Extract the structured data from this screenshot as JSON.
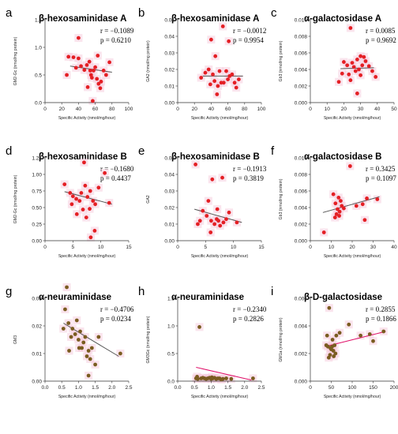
{
  "colors": {
    "red": "#e41f24",
    "brown": "#7a5c20",
    "reg_line": "#555555",
    "reg_line_pink": "#e0116a",
    "halo": "#f6c9dc"
  },
  "chart_data": [
    {
      "id": "a",
      "type": "scatter",
      "title": "β-hexosaminidase A",
      "ylabel": "GM2-Gc (nmol/mg protein)",
      "xlabel": "Specific Activity (nmol/mg/hour)",
      "r_label": "r = −0.1089",
      "p_label": "p = 0.6210",
      "xlim": [
        0,
        100
      ],
      "ylim": [
        0,
        1.5
      ],
      "xticks": [
        "0",
        "20",
        "40",
        "60",
        "80",
        "100"
      ],
      "yticks": [
        "0.0",
        "0.5",
        "1.0",
        "1.5"
      ],
      "point_color": "red",
      "line_color": "reg_line",
      "points": [
        [
          40,
          1.17
        ],
        [
          28,
          0.83
        ],
        [
          34,
          0.82
        ],
        [
          26,
          0.5
        ],
        [
          37,
          0.63
        ],
        [
          40,
          0.8
        ],
        [
          43,
          0.66
        ],
        [
          47,
          0.59
        ],
        [
          50,
          0.68
        ],
        [
          53,
          0.74
        ],
        [
          55,
          0.5
        ],
        [
          56,
          0.45
        ],
        [
          58,
          0.58
        ],
        [
          60,
          0.64
        ],
        [
          62,
          0.43
        ],
        [
          63,
          0.85
        ],
        [
          57,
          0.03
        ],
        [
          64,
          0.34
        ],
        [
          66,
          0.26
        ],
        [
          67,
          0.38
        ],
        [
          70,
          0.58
        ],
        [
          73,
          0.5
        ],
        [
          77,
          0.73
        ],
        [
          54,
          0.58
        ],
        [
          51,
          0.28
        ]
      ],
      "line": [
        [
          30,
          0.66
        ],
        [
          80,
          0.55
        ]
      ]
    },
    {
      "id": "b",
      "type": "scatter",
      "title": "β-hexosaminidase A",
      "ylabel": "GA2 (nmol/mg protein)",
      "xlabel": "Specific Activity (nmol/mg/hour)",
      "r_label": "r = −0.0012",
      "p_label": "p = 0.9954",
      "xlim": [
        0,
        100
      ],
      "ylim": [
        0,
        0.05
      ],
      "xticks": [
        "0",
        "20",
        "40",
        "60",
        "80",
        "100"
      ],
      "yticks": [
        "0.00",
        "0.01",
        "0.02",
        "0.03",
        "0.04",
        "0.05"
      ],
      "point_color": "red",
      "line_color": "reg_line",
      "points": [
        [
          54,
          0.046
        ],
        [
          61,
          0.037
        ],
        [
          40,
          0.038
        ],
        [
          45,
          0.028
        ],
        [
          28,
          0.015
        ],
        [
          33,
          0.018
        ],
        [
          37,
          0.02
        ],
        [
          42,
          0.017
        ],
        [
          44,
          0.013
        ],
        [
          48,
          0.01
        ],
        [
          50,
          0.019
        ],
        [
          52,
          0.012
        ],
        [
          55,
          0.012
        ],
        [
          58,
          0.019
        ],
        [
          60,
          0.014
        ],
        [
          62,
          0.016
        ],
        [
          65,
          0.017
        ],
        [
          68,
          0.012
        ],
        [
          70,
          0.009
        ],
        [
          73,
          0.014
        ],
        [
          47,
          0.005
        ],
        [
          39,
          0.011
        ]
      ],
      "line": [
        [
          30,
          0.016
        ],
        [
          78,
          0.016
        ]
      ]
    },
    {
      "id": "c",
      "type": "scatter",
      "title": "α-galactosidase A",
      "ylabel": "Gb3 (nmol/mg protein)",
      "xlabel": "Specific Activity (nmol/mg/hour)",
      "r_label": "r = 0.0085",
      "p_label": "p = 0.9692",
      "xlim": [
        0,
        50
      ],
      "ylim": [
        0,
        0.01
      ],
      "xticks": [
        "0",
        "10",
        "20",
        "30",
        "40",
        "50"
      ],
      "yticks": [
        "0.000",
        "0.002",
        "0.004",
        "0.006",
        "0.008",
        "0.010"
      ],
      "point_color": "red",
      "line_color": "reg_line",
      "points": [
        [
          24,
          0.009
        ],
        [
          30,
          0.0056
        ],
        [
          28,
          0.0052
        ],
        [
          20,
          0.0049
        ],
        [
          22,
          0.0045
        ],
        [
          26,
          0.0043
        ],
        [
          17,
          0.0025
        ],
        [
          19,
          0.0035
        ],
        [
          23,
          0.0034
        ],
        [
          25,
          0.0048
        ],
        [
          27,
          0.0038
        ],
        [
          29,
          0.004
        ],
        [
          31,
          0.0045
        ],
        [
          33,
          0.005
        ],
        [
          35,
          0.0044
        ],
        [
          37,
          0.0038
        ],
        [
          39,
          0.0031
        ],
        [
          24,
          0.0027
        ],
        [
          30,
          0.0033
        ],
        [
          28,
          0.0011
        ],
        [
          32,
          0.0055
        ]
      ],
      "line": [
        [
          18,
          0.0041
        ],
        [
          38,
          0.0042
        ]
      ]
    },
    {
      "id": "d",
      "type": "scatter",
      "title": "β-hexosaminidase B",
      "ylabel": "GM2-Gc (nmol/mg protein)",
      "xlabel": "Specific Activity (nmol/mg/hour)",
      "r_label": "r = −0.1680",
      "p_label": "p = 0.4437",
      "xlim": [
        0,
        15
      ],
      "ylim": [
        0,
        1.25
      ],
      "xticks": [
        "0",
        "5",
        "10",
        "15"
      ],
      "yticks": [
        "0.00",
        "0.25",
        "0.50",
        "0.75",
        "1.00",
        "1.25"
      ],
      "point_color": "red",
      "line_color": "reg_line",
      "points": [
        [
          7,
          1.18
        ],
        [
          10.7,
          1.02
        ],
        [
          3.5,
          0.85
        ],
        [
          4.5,
          0.72
        ],
        [
          5,
          0.67
        ],
        [
          5.6,
          0.63
        ],
        [
          6.2,
          0.6
        ],
        [
          6.5,
          0.72
        ],
        [
          7.2,
          0.83
        ],
        [
          7.6,
          0.66
        ],
        [
          8.1,
          0.75
        ],
        [
          8.6,
          0.6
        ],
        [
          9,
          0.55
        ],
        [
          6.8,
          0.47
        ],
        [
          7.4,
          0.35
        ],
        [
          8,
          0.48
        ],
        [
          5.7,
          0.4
        ],
        [
          4.8,
          0.55
        ],
        [
          9.6,
          0.8
        ],
        [
          11.5,
          0.57
        ],
        [
          8.9,
          0.15
        ],
        [
          8.2,
          0.05
        ]
      ],
      "line": [
        [
          3.5,
          0.74
        ],
        [
          12,
          0.55
        ]
      ]
    },
    {
      "id": "e",
      "type": "scatter",
      "title": "β-hexosaminidase B",
      "ylabel": "GA2",
      "xlabel": "Specific Activity (nmol/mg/hour)",
      "r_label": "r = −0.1913",
      "p_label": "p = 0.3819",
      "xlim": [
        0,
        15
      ],
      "ylim": [
        0,
        0.05
      ],
      "xticks": [
        "0",
        "5",
        "10",
        "15"
      ],
      "yticks": [
        "0.00",
        "0.01",
        "0.02",
        "0.03",
        "0.04",
        "0.05"
      ],
      "point_color": "red",
      "line_color": "reg_line",
      "points": [
        [
          3.2,
          0.046
        ],
        [
          6.2,
          0.037
        ],
        [
          8,
          0.038
        ],
        [
          5.5,
          0.024
        ],
        [
          4.5,
          0.018
        ],
        [
          5.2,
          0.015
        ],
        [
          6,
          0.012
        ],
        [
          6.6,
          0.01
        ],
        [
          7,
          0.013
        ],
        [
          7.3,
          0.012
        ],
        [
          7.6,
          0.009
        ],
        [
          8.2,
          0.011
        ],
        [
          8.7,
          0.013
        ],
        [
          9.2,
          0.017
        ],
        [
          4,
          0.012
        ],
        [
          3.6,
          0.01
        ],
        [
          10.6,
          0.011
        ],
        [
          5.9,
          0.005
        ],
        [
          7.1,
          0.019
        ]
      ],
      "line": [
        [
          3,
          0.019
        ],
        [
          11.5,
          0.011
        ]
      ]
    },
    {
      "id": "f",
      "type": "scatter",
      "title": "α-galactosidase B",
      "ylabel": "Gb3 (nmol/mg protein)",
      "xlabel": "Specific Activity (nmol/mg/hour)",
      "r_label": "r = 0.3425",
      "p_label": "p = 0.1097",
      "xlim": [
        0,
        40
      ],
      "ylim": [
        0,
        0.01
      ],
      "xticks": [
        "0",
        "10",
        "20",
        "30",
        "40"
      ],
      "yticks": [
        "0.000",
        "0.002",
        "0.004",
        "0.006",
        "0.008",
        "0.010"
      ],
      "point_color": "red",
      "line_color": "reg_line",
      "points": [
        [
          19,
          0.009
        ],
        [
          11,
          0.0056
        ],
        [
          13.5,
          0.0052
        ],
        [
          14.5,
          0.0048
        ],
        [
          12,
          0.0045
        ],
        [
          13,
          0.0038
        ],
        [
          14,
          0.0035
        ],
        [
          12.5,
          0.0032
        ],
        [
          13.8,
          0.003
        ],
        [
          11.8,
          0.0028
        ],
        [
          15,
          0.0042
        ],
        [
          22,
          0.0042
        ],
        [
          25,
          0.0044
        ],
        [
          27,
          0.0051
        ],
        [
          32,
          0.005
        ],
        [
          6.5,
          0.001
        ],
        [
          26,
          0.0025
        ],
        [
          16,
          0.0039
        ]
      ],
      "line": [
        [
          6,
          0.0034
        ],
        [
          33,
          0.0053
        ]
      ]
    },
    {
      "id": "g",
      "type": "scatter",
      "title": "α-neuraminidase",
      "ylabel": "GM3",
      "xlabel": "Specific Activity (nmol/mg/hour)",
      "r_label": "r = −0.4706",
      "p_label": "p = 0.0234",
      "xlim": [
        0,
        2.5
      ],
      "ylim": [
        0,
        0.03
      ],
      "xticks": [
        "0.0",
        "0.5",
        "1.0",
        "1.5",
        "2.0",
        "2.5"
      ],
      "yticks": [
        "0.00",
        "0.01",
        "0.02",
        "0.03"
      ],
      "point_color": "brown",
      "line_color": "reg_line",
      "points": [
        [
          0.65,
          0.034
        ],
        [
          0.6,
          0.026
        ],
        [
          0.55,
          0.019
        ],
        [
          0.7,
          0.021
        ],
        [
          0.78,
          0.016
        ],
        [
          0.82,
          0.019
        ],
        [
          0.9,
          0.017
        ],
        [
          0.95,
          0.022
        ],
        [
          1.0,
          0.015
        ],
        [
          1.05,
          0.018
        ],
        [
          1.1,
          0.012
        ],
        [
          1.15,
          0.014
        ],
        [
          1.2,
          0.016
        ],
        [
          1.25,
          0.009
        ],
        [
          1.3,
          0.011
        ],
        [
          1.35,
          0.008
        ],
        [
          1.4,
          0.012
        ],
        [
          1.5,
          0.006
        ],
        [
          1.6,
          0.016
        ],
        [
          0.72,
          0.011
        ],
        [
          1.02,
          0.012
        ],
        [
          1.3,
          0.002
        ],
        [
          2.25,
          0.01
        ]
      ],
      "line": [
        [
          0.55,
          0.021
        ],
        [
          2.2,
          0.009
        ]
      ]
    },
    {
      "id": "h",
      "type": "scatter",
      "title": "α-neuraminidase",
      "ylabel": "GM3Gc (nmol/mg protein)",
      "xlabel": "Specific Activity (nmol/mg/hour)",
      "r_label": "r = −0.2340",
      "p_label": "p = 0.2826",
      "xlim": [
        0,
        2.5
      ],
      "ylim": [
        0,
        1.5
      ],
      "xticks": [
        "0.0",
        "0.5",
        "1.0",
        "1.5",
        "2.0",
        "2.5"
      ],
      "yticks": [
        "0.0",
        "0.5",
        "1.0",
        "1.5"
      ],
      "point_color": "brown",
      "line_color": "reg_line_pink",
      "points": [
        [
          0.65,
          0.98
        ],
        [
          0.55,
          0.05
        ],
        [
          0.6,
          0.04
        ],
        [
          0.7,
          0.05
        ],
        [
          0.75,
          0.06
        ],
        [
          0.8,
          0.05
        ],
        [
          0.85,
          0.04
        ],
        [
          0.9,
          0.05
        ],
        [
          0.95,
          0.06
        ],
        [
          1.0,
          0.04
        ],
        [
          1.05,
          0.05
        ],
        [
          1.1,
          0.06
        ],
        [
          1.15,
          0.04
        ],
        [
          1.2,
          0.05
        ],
        [
          1.25,
          0.05
        ],
        [
          1.3,
          0.03
        ],
        [
          1.35,
          0.04
        ],
        [
          1.45,
          0.05
        ],
        [
          1.6,
          0.04
        ],
        [
          2.25,
          0.05
        ],
        [
          0.58,
          0.08
        ],
        [
          1.02,
          0.07
        ]
      ],
      "line": [
        [
          0.55,
          0.25
        ],
        [
          2.2,
          0.02
        ]
      ]
    },
    {
      "id": "i",
      "type": "scatter",
      "title": "β-D-galactosidase",
      "ylabel": "GM1a (nmol/mg protein)",
      "xlabel": "Specific Activity (nmol/mg/hour)",
      "r_label": "r = 0.2855",
      "p_label": "p = 0.1866",
      "xlim": [
        0,
        200
      ],
      "ylim": [
        0,
        0.006
      ],
      "xticks": [
        "0",
        "50",
        "100",
        "150",
        "200"
      ],
      "yticks": [
        "0.000",
        "0.002",
        "0.004",
        "0.006"
      ],
      "point_color": "brown",
      "line_color": "reg_line_pink",
      "points": [
        [
          45,
          0.0053
        ],
        [
          40,
          0.0033
        ],
        [
          42,
          0.0025
        ],
        [
          48,
          0.0024
        ],
        [
          50,
          0.0023
        ],
        [
          52,
          0.0025
        ],
        [
          55,
          0.0022
        ],
        [
          58,
          0.0026
        ],
        [
          60,
          0.002
        ],
        [
          38,
          0.0026
        ],
        [
          44,
          0.0017
        ],
        [
          47,
          0.0019
        ],
        [
          53,
          0.003
        ],
        [
          62,
          0.0033
        ],
        [
          70,
          0.0035
        ],
        [
          92,
          0.0041
        ],
        [
          120,
          0.0033
        ],
        [
          142,
          0.0034
        ],
        [
          175,
          0.0036
        ],
        [
          56,
          0.0018
        ],
        [
          150,
          0.0029
        ]
      ],
      "line": [
        [
          35,
          0.0025
        ],
        [
          180,
          0.0036
        ]
      ]
    }
  ]
}
